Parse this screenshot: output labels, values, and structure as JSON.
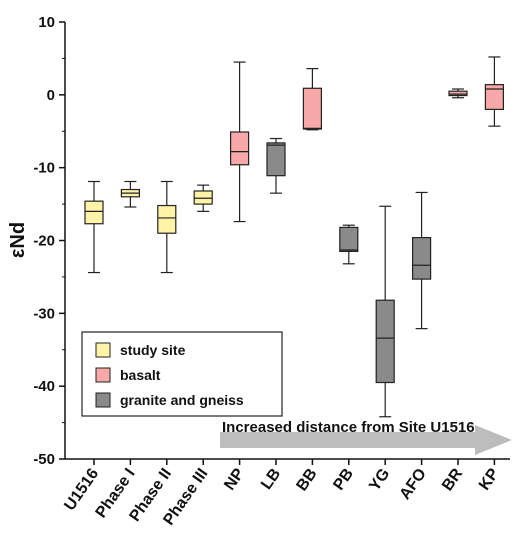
{
  "chart_data": {
    "type": "boxplot",
    "ylabel": "εNd",
    "ylim": [
      -50,
      10
    ],
    "yticks": [
      10,
      0,
      -10,
      -20,
      -30,
      -40,
      -50
    ],
    "grid": false,
    "legend_position": "bottom-left",
    "categories": [
      "U1516",
      "Phase I",
      "Phase II",
      "Phase III",
      "NP",
      "LB",
      "BB",
      "PB",
      "YG",
      "AFO",
      "BR",
      "KP"
    ],
    "legend": [
      {
        "label": "study site",
        "color": "#fff3a8"
      },
      {
        "label": "basalt",
        "color": "#f7a8a8"
      },
      {
        "label": "granite and gneiss",
        "color": "#8a8a8a"
      }
    ],
    "boxes": [
      {
        "category": "U1516",
        "group": "study site",
        "min": -24.4,
        "q1": -17.7,
        "median": -16.0,
        "q3": -14.6,
        "max": -11.9
      },
      {
        "category": "Phase I",
        "group": "study site",
        "min": -15.4,
        "q1": -14.0,
        "median": -13.5,
        "q3": -13.0,
        "max": -11.9
      },
      {
        "category": "Phase II",
        "group": "study site",
        "min": -24.4,
        "q1": -19.0,
        "median": -16.9,
        "q3": -15.2,
        "max": -11.9
      },
      {
        "category": "Phase III",
        "group": "study site",
        "min": -16.0,
        "q1": -15.0,
        "median": -14.2,
        "q3": -13.2,
        "max": -12.4
      },
      {
        "category": "NP",
        "group": "basalt",
        "min": -17.4,
        "q1": -9.6,
        "median": -7.8,
        "q3": -5.1,
        "max": 4.5
      },
      {
        "category": "LB",
        "group": "granite and gneiss",
        "min": -13.5,
        "q1": -11.1,
        "median": -6.9,
        "q3": -6.6,
        "max": -6.0
      },
      {
        "category": "BB",
        "group": "basalt",
        "min": -4.8,
        "q1": -4.7,
        "median": -4.6,
        "q3": 0.9,
        "max": 3.6
      },
      {
        "category": "PB",
        "group": "granite and gneiss",
        "min": -23.2,
        "q1": -21.5,
        "median": -21.3,
        "q3": -18.2,
        "max": -17.9
      },
      {
        "category": "YG",
        "group": "granite and gneiss",
        "min": -44.2,
        "q1": -39.5,
        "median": -33.4,
        "q3": -28.2,
        "max": -15.3
      },
      {
        "category": "AFO",
        "group": "granite and gneiss",
        "min": -32.1,
        "q1": -25.3,
        "median": -23.4,
        "q3": -19.6,
        "max": -13.4
      },
      {
        "category": "BR",
        "group": "basalt",
        "min": -0.4,
        "q1": -0.1,
        "median": 0.1,
        "q3": 0.5,
        "max": 0.8
      },
      {
        "category": "KP",
        "group": "basalt",
        "min": -4.3,
        "q1": -2.0,
        "median": 0.8,
        "q3": 1.4,
        "max": 5.2
      }
    ],
    "annotation": "Increased distance from Site U1516"
  }
}
